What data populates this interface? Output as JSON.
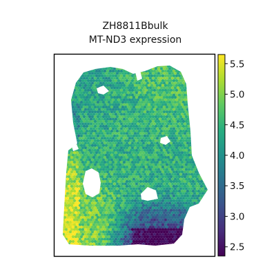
{
  "chart_data": {
    "type": "heatmap",
    "title": "ZH8811Bbulk",
    "subtitle": "MT-ND3 expression",
    "xlabel": "",
    "ylabel": "",
    "grid": false,
    "colormap": "viridis",
    "colorbar": {
      "range": [
        2.35,
        5.65
      ],
      "ticks": [
        2.5,
        3.0,
        3.5,
        4.0,
        4.5,
        5.0,
        5.5
      ],
      "tick_labels": [
        "2.5",
        "3.0",
        "3.5",
        "4.0",
        "4.5",
        "5.0",
        "5.5"
      ]
    },
    "regions": [
      {
        "name": "upper-left lobe",
        "value": 4.2
      },
      {
        "name": "upper-right lobe",
        "value": 4.7
      },
      {
        "name": "central body",
        "value": 4.4
      },
      {
        "name": "lower-left lobe",
        "value": 5.1
      },
      {
        "name": "lower-right bottom",
        "value": 2.9
      }
    ]
  }
}
